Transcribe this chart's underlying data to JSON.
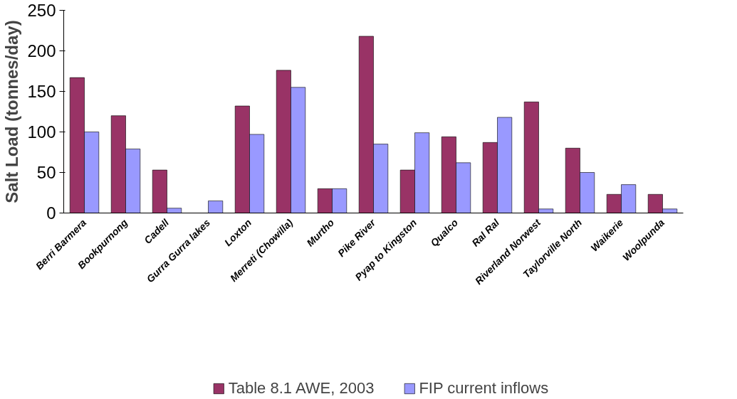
{
  "chart_data": {
    "type": "bar",
    "ylabel": "Salt Load (tonnes/day)",
    "categories": [
      "Berri Barmera",
      "Bookpurnong",
      "Cadell",
      "Gurra Gurra lakes",
      "Loxton",
      "Merreti (Chowilla)",
      "Murtho",
      "Pike River",
      "Pyap to Kingston",
      "Qualco",
      "Ral Ral",
      "Riverland Norwest",
      "Taylorville North",
      "Waikerie",
      "Woolpunda"
    ],
    "series": [
      {
        "name": "Table 8.1 AWE, 2003",
        "color": "#993366",
        "values": [
          167,
          120,
          53,
          null,
          132,
          176,
          30,
          218,
          53,
          94,
          87,
          137,
          80,
          23,
          23
        ]
      },
      {
        "name": "FIP current inflows",
        "color": "#9999ff",
        "values": [
          100,
          79,
          6,
          15,
          97,
          155,
          30,
          85,
          99,
          62,
          118,
          5,
          50,
          35,
          5
        ]
      }
    ],
    "ylim": [
      0,
      250
    ],
    "yticks": [
      0,
      50,
      100,
      150,
      200,
      250
    ],
    "grid": false,
    "legend": "bottom"
  }
}
